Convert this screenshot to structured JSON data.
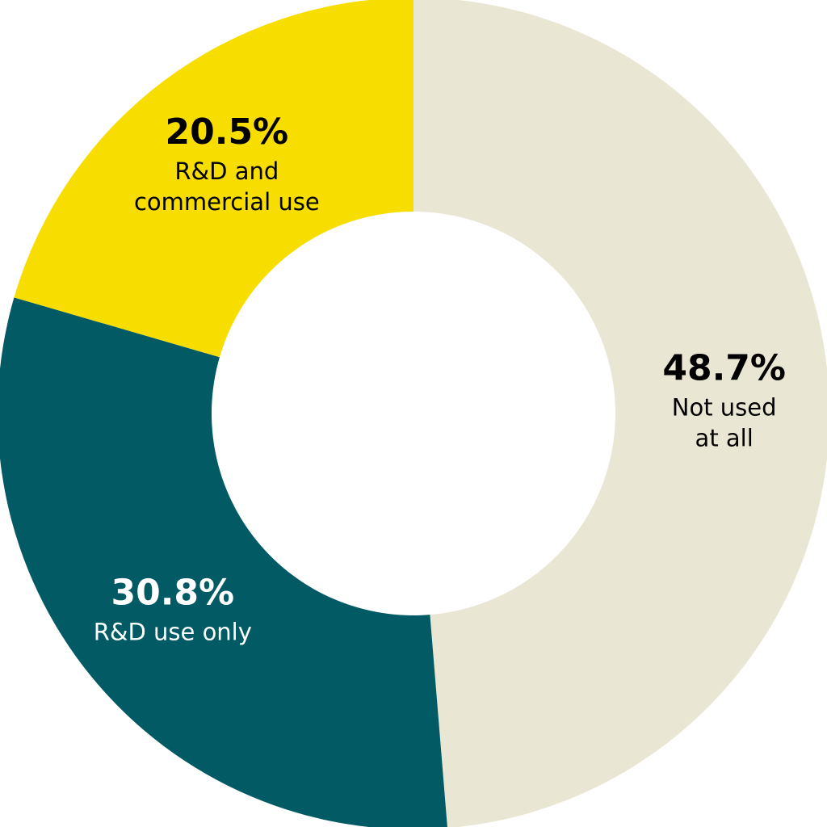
{
  "chart_data": {
    "type": "pie",
    "style": "donut",
    "title": "",
    "slices": [
      {
        "value": 48.7,
        "percent_label": "48.7%",
        "label_lines": [
          "Not used",
          "at all"
        ],
        "color": "#EAE6D4",
        "text_color": "#000000"
      },
      {
        "value": 30.8,
        "percent_label": "30.8%",
        "label_lines": [
          "R&D use only"
        ],
        "color": "#025B64",
        "text_color": "#FFFFFF"
      },
      {
        "value": 20.5,
        "percent_label": "20.5%",
        "label_lines": [
          "R&D and",
          "commercial use"
        ],
        "color": "#F7DD00",
        "text_color": "#000000"
      }
    ],
    "start": "top",
    "direction": "clockwise",
    "background": "#FFFFFF"
  }
}
